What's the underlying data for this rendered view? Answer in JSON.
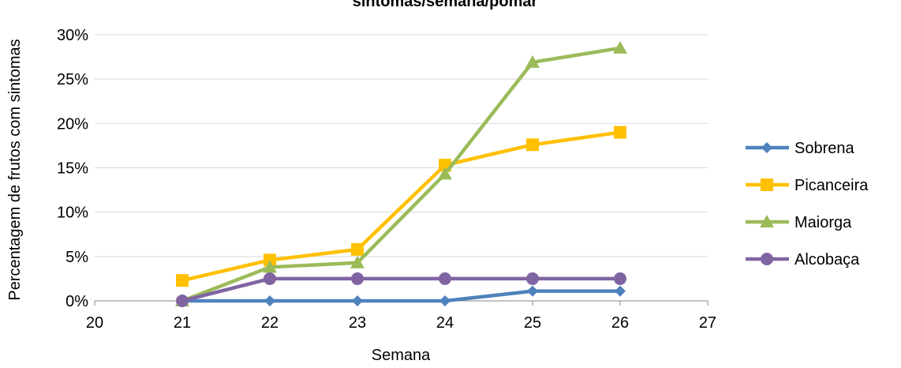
{
  "chart_data": {
    "type": "line",
    "title": "sintomas/semana/pomar",
    "xlabel": "Semana",
    "ylabel": "Percentagem de frutos com sintomas",
    "xlim": [
      20,
      27
    ],
    "ylim": [
      0,
      0.3
    ],
    "x_ticks": [
      20,
      21,
      22,
      23,
      24,
      25,
      26,
      27
    ],
    "y_ticks": [
      0,
      0.05,
      0.1,
      0.15,
      0.2,
      0.25,
      0.3
    ],
    "y_tick_labels": [
      "0%",
      "5%",
      "10%",
      "15%",
      "20%",
      "25%",
      "30%"
    ],
    "grid": "horizontal",
    "legend_position": "right",
    "x": [
      21,
      22,
      23,
      24,
      25,
      26
    ],
    "series": [
      {
        "name": "Sobrena",
        "color": "#4F81BD",
        "marker": "diamond",
        "values": [
          0,
          0,
          0,
          0,
          0.011,
          0.011
        ]
      },
      {
        "name": "Picanceira",
        "color": "#FFC000",
        "marker": "square",
        "values": [
          0.023,
          0.046,
          0.058,
          0.153,
          0.176,
          0.19
        ]
      },
      {
        "name": "Maiorga",
        "color": "#9BBB59",
        "marker": "triangle",
        "values": [
          0,
          0.038,
          0.043,
          0.143,
          0.269,
          0.285
        ]
      },
      {
        "name": "Alcobaça",
        "color": "#8064A2",
        "marker": "circle",
        "values": [
          0,
          0.025,
          0.025,
          0.025,
          0.025,
          0.025
        ]
      }
    ]
  }
}
